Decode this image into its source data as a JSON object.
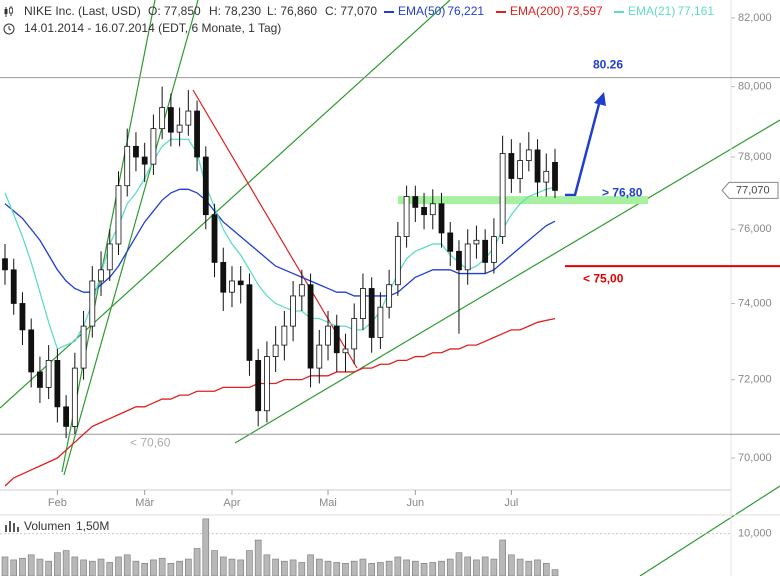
{
  "chart_data": {
    "type": "candlestick",
    "title": "NIKE Inc. (Last, USD)",
    "ohlc_labels": [
      "O: 77,850",
      "H: 78,230",
      "L: 76,860",
      "C: 77,070"
    ],
    "subtitle": "14.01.2014 - 16.07.2014 (EDT, 6 Monate, 1 Tag)",
    "categories": [
      null,
      null,
      null,
      null,
      null,
      null,
      "Feb",
      null,
      null,
      null,
      null,
      null,
      null,
      null,
      null,
      null,
      "Mär",
      null,
      null,
      null,
      null,
      null,
      null,
      null,
      null,
      null,
      "Apr",
      null,
      null,
      null,
      null,
      null,
      null,
      null,
      null,
      null,
      null,
      "Mai",
      null,
      null,
      null,
      null,
      null,
      null,
      null,
      null,
      null,
      "Jun",
      null,
      null,
      null,
      null,
      null,
      null,
      null,
      null,
      null,
      null,
      "Jul",
      null,
      null,
      null,
      null,
      null
    ],
    "open": [
      75.2,
      74.9,
      74.0,
      73.3,
      72.2,
      71.8,
      72.5,
      71.3,
      70.8,
      72.3,
      73.4,
      74.6,
      74.9,
      75.6,
      77.2,
      78.3,
      78.0,
      77.8,
      78.8,
      79.4,
      78.7,
      78.9,
      79.3,
      78.0,
      76.4,
      75.1,
      74.3,
      74.6,
      74.5,
      72.5,
      71.2,
      72.6,
      72.9,
      73.4,
      74.2,
      74.5,
      72.3,
      72.9,
      73.4,
      72.7,
      72.8,
      73.6,
      74.4,
      73.1,
      73.9,
      74.5,
      75.8,
      76.9,
      76.6,
      76.4,
      76.7,
      75.9,
      75.4,
      74.9,
      75.6,
      75.7,
      75.1,
      75.8,
      78.1,
      77.4,
      77.9,
      78.2,
      77.3,
      77.85
    ],
    "high": [
      75.6,
      75.2,
      74.3,
      73.6,
      72.6,
      72.9,
      72.8,
      71.6,
      72.7,
      73.8,
      75.0,
      75.4,
      76.0,
      77.6,
      78.8,
      78.7,
      78.4,
      79.2,
      80.0,
      79.8,
      79.4,
      79.9,
      79.6,
      78.3,
      76.7,
      75.5,
      75.0,
      75.0,
      74.8,
      72.8,
      73.0,
      73.4,
      73.8,
      74.6,
      74.9,
      74.8,
      73.3,
      73.8,
      73.7,
      73.2,
      74.0,
      74.8,
      74.7,
      74.3,
      74.9,
      76.2,
      77.2,
      77.2,
      77.0,
      77.1,
      77.0,
      76.2,
      75.7,
      76.0,
      76.1,
      76.0,
      76.3,
      78.6,
      78.5,
      78.4,
      78.7,
      78.5,
      78.1,
      78.23
    ],
    "low": [
      74.5,
      73.7,
      72.9,
      71.8,
      71.4,
      71.5,
      70.9,
      70.5,
      70.6,
      72.0,
      73.1,
      74.2,
      74.6,
      75.3,
      76.9,
      77.6,
      77.3,
      77.5,
      78.5,
      78.3,
      78.3,
      78.6,
      77.6,
      76.0,
      74.7,
      73.8,
      73.9,
      74.0,
      72.1,
      70.8,
      70.9,
      72.2,
      72.5,
      73.0,
      73.8,
      71.8,
      71.9,
      72.5,
      72.2,
      72.2,
      72.4,
      73.3,
      72.7,
      72.8,
      73.6,
      74.2,
      75.5,
      76.2,
      76.0,
      76.0,
      75.5,
      75.0,
      73.2,
      74.5,
      75.2,
      74.8,
      74.8,
      75.6,
      77.0,
      77.0,
      77.6,
      76.9,
      76.9,
      76.86
    ],
    "close": [
      74.9,
      74.0,
      73.3,
      72.2,
      71.8,
      72.5,
      71.3,
      70.8,
      72.3,
      73.4,
      74.6,
      74.9,
      75.6,
      77.2,
      78.3,
      78.0,
      77.8,
      78.8,
      79.4,
      78.7,
      78.9,
      79.3,
      78.0,
      76.4,
      75.1,
      74.3,
      74.6,
      74.5,
      72.5,
      71.2,
      72.6,
      72.9,
      73.4,
      74.2,
      74.5,
      72.3,
      72.9,
      73.4,
      72.7,
      72.8,
      73.6,
      74.4,
      73.1,
      73.9,
      74.5,
      75.8,
      76.9,
      76.6,
      76.4,
      76.7,
      75.9,
      75.4,
      74.9,
      75.6,
      75.7,
      75.1,
      75.8,
      78.1,
      77.4,
      77.9,
      78.2,
      77.3,
      77.6,
      77.07
    ],
    "series": [
      {
        "name": "EMA(50)",
        "color": "#1f3fd0",
        "value_label": "76,221",
        "values": [
          76.7,
          76.5,
          76.3,
          76.0,
          75.7,
          75.3,
          74.9,
          74.6,
          74.4,
          74.3,
          74.3,
          74.5,
          74.7,
          75.0,
          75.4,
          75.8,
          76.2,
          76.5,
          76.8,
          77.0,
          77.1,
          77.1,
          77.0,
          76.8,
          76.5,
          76.2,
          76.0,
          75.8,
          75.6,
          75.4,
          75.2,
          75.0,
          74.9,
          74.8,
          74.7,
          74.6,
          74.5,
          74.4,
          74.3,
          74.3,
          74.2,
          74.2,
          74.2,
          74.2,
          74.2,
          74.3,
          74.5,
          74.7,
          74.8,
          74.9,
          74.9,
          74.9,
          74.8,
          74.8,
          74.8,
          74.8,
          74.9,
          75.1,
          75.3,
          75.5,
          75.7,
          75.9,
          76.1,
          76.221
        ]
      },
      {
        "name": "EMA(200)",
        "color": "#e02020",
        "value_label": "73,597",
        "values": [
          69.3,
          69.5,
          69.6,
          69.7,
          69.8,
          69.9,
          70.0,
          70.2,
          70.4,
          70.6,
          70.8,
          70.9,
          71.0,
          71.1,
          71.2,
          71.3,
          71.3,
          71.4,
          71.5,
          71.5,
          71.6,
          71.6,
          71.7,
          71.7,
          71.7,
          71.8,
          71.8,
          71.8,
          71.8,
          71.9,
          71.9,
          71.9,
          72.0,
          72.0,
          72.0,
          72.1,
          72.1,
          72.1,
          72.2,
          72.2,
          72.2,
          72.3,
          72.3,
          72.4,
          72.4,
          72.5,
          72.5,
          72.6,
          72.6,
          72.7,
          72.7,
          72.8,
          72.8,
          72.9,
          72.9,
          73.0,
          73.1,
          73.2,
          73.3,
          73.3,
          73.4,
          73.5,
          73.55,
          73.597
        ]
      },
      {
        "name": "EMA(21)",
        "color": "#5fdcc6",
        "value_label": "77,161",
        "values": [
          77.0,
          76.4,
          75.8,
          75.1,
          74.3,
          73.5,
          72.8,
          72.9,
          73.0,
          73.4,
          74.0,
          74.8,
          75.6,
          76.1,
          76.7,
          77.0,
          77.4,
          77.9,
          78.3,
          78.5,
          78.5,
          78.5,
          78.1,
          77.2,
          76.6,
          76.0,
          75.6,
          75.3,
          74.9,
          74.5,
          74.2,
          74.0,
          73.9,
          73.8,
          73.8,
          73.6,
          73.6,
          73.5,
          73.4,
          73.4,
          73.3,
          73.3,
          73.5,
          73.8,
          74.3,
          74.8,
          75.2,
          75.4,
          75.5,
          75.6,
          75.6,
          75.3,
          75.1,
          74.9,
          75.0,
          75.2,
          75.5,
          76.0,
          76.4,
          76.7,
          76.9,
          77.0,
          77.1,
          77.161
        ]
      }
    ],
    "ylim": [
      69.15,
      82.53
    ],
    "log": true,
    "yticks": [
      {
        "value": 70,
        "label": "70,000"
      },
      {
        "value": 72,
        "label": "72,000"
      },
      {
        "value": 74,
        "label": "74,000"
      },
      {
        "value": 76,
        "label": "76,000"
      },
      {
        "value": 78,
        "label": "78,000"
      },
      {
        "value": 80,
        "label": "80,000"
      },
      {
        "value": 82,
        "label": "82,000"
      }
    ],
    "last_price_label": "77,070",
    "levels": [
      {
        "value": 80.26,
        "label": "80.26",
        "color": "#1f3fd0"
      },
      {
        "value": 76.8,
        "label": "> 76,80",
        "color": "#1f3fd0"
      },
      {
        "value": 75.0,
        "label": "< 75,00",
        "color": "#e00000"
      },
      {
        "value": 70.6,
        "label": "< 70,60",
        "color": "#aaaaaa"
      }
    ],
    "volume": {
      "name": "Volumen",
      "value_label": "1,50M",
      "color": "#b8b8b8",
      "values": [
        4.5,
        3.8,
        4.2,
        5.0,
        4.0,
        3.5,
        5.5,
        6.0,
        4.5,
        3.8,
        3.5,
        4.0,
        3.2,
        4.5,
        5.0,
        3.5,
        3.0,
        3.8,
        4.2,
        3.0,
        3.5,
        4.0,
        6.5,
        13.5,
        6.0,
        4.5,
        4.0,
        3.8,
        6.0,
        8.5,
        5.0,
        4.0,
        3.5,
        3.8,
        3.2,
        5.0,
        4.0,
        3.5,
        3.2,
        3.0,
        3.5,
        4.0,
        3.0,
        3.2,
        3.5,
        4.5,
        3.8,
        3.5,
        3.0,
        3.2,
        3.5,
        4.0,
        5.5,
        4.5,
        3.8,
        4.5,
        4.0,
        8.5,
        5.0,
        4.0,
        3.5,
        3.8,
        3.0,
        1.5
      ],
      "ylim": [
        0,
        13.7
      ],
      "yticks": [
        {
          "value": 10,
          "label": "10,000"
        }
      ]
    }
  }
}
